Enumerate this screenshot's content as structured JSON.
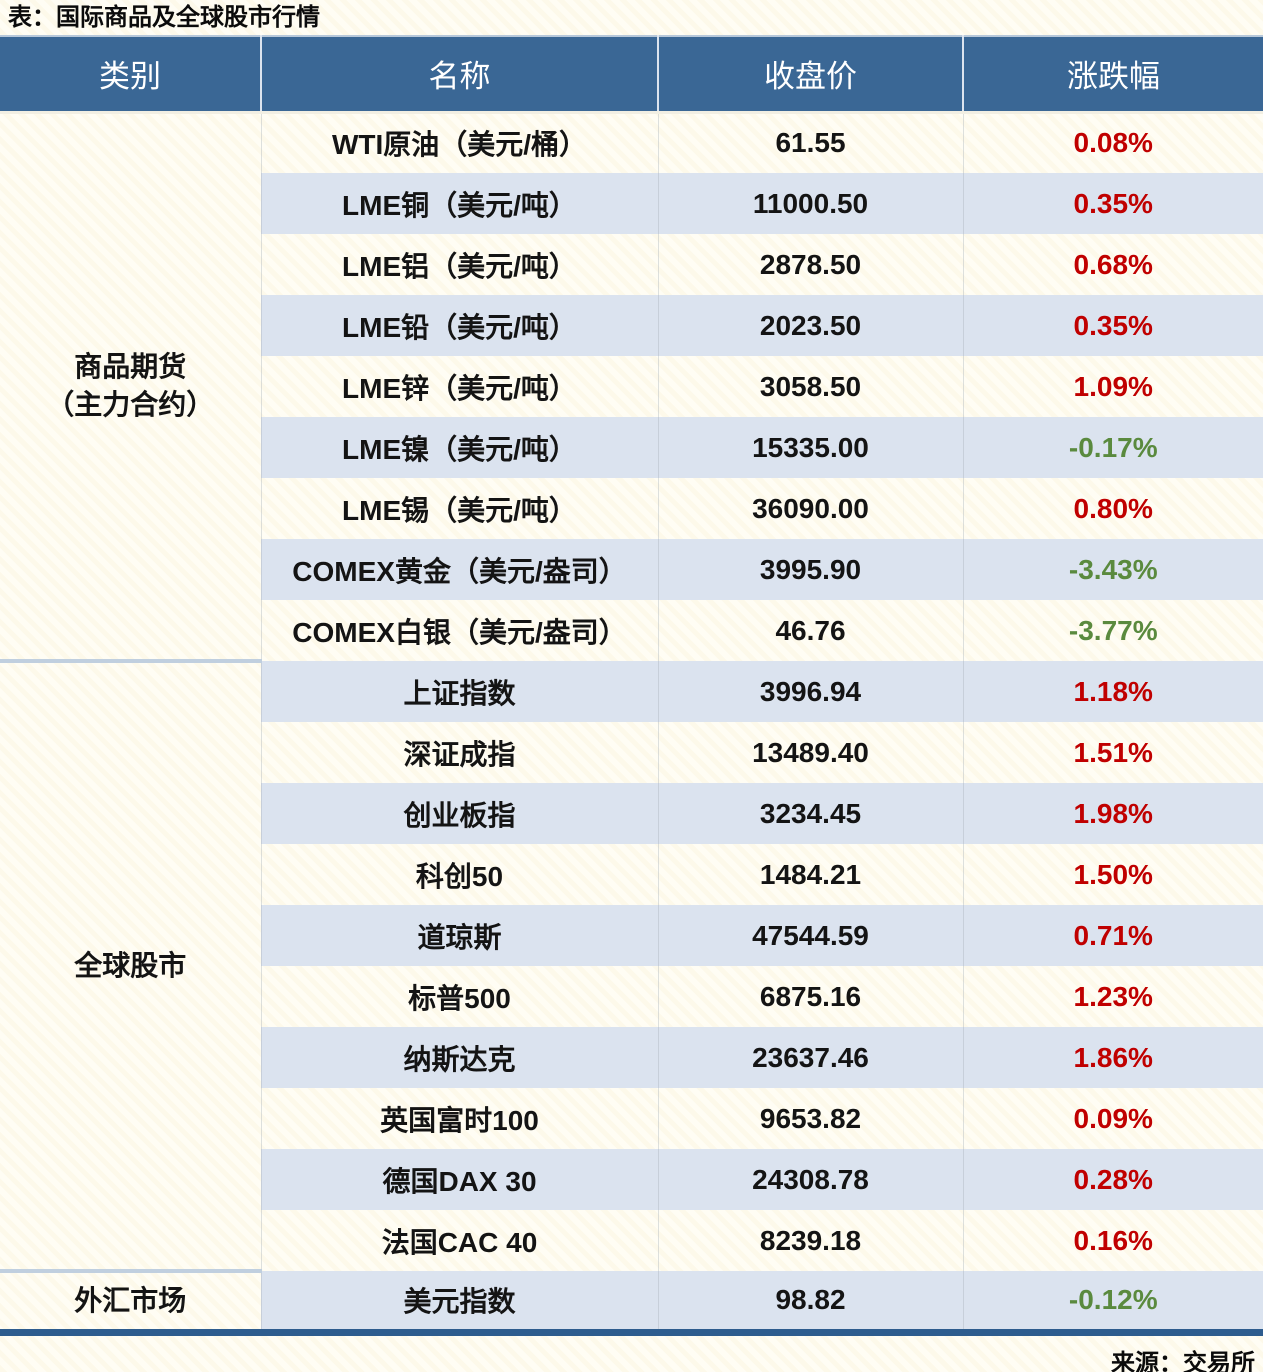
{
  "title": "表：国际商品及全球股市行情",
  "source": "来源：交易所",
  "colors": {
    "header_bg": "#3A6795",
    "alt_row_bg": "#DBE3EF",
    "page_bg": "#FFFDF4",
    "up_red": "#C00000",
    "down_green": "#5A8A3E",
    "bottom_border": "#2D5C8E"
  },
  "table": {
    "headers": [
      "类别",
      "名称",
      "收盘价",
      "涨跌幅"
    ],
    "groups": [
      {
        "category_lines": [
          "商品期货",
          "（主力合约）"
        ],
        "rows": [
          {
            "name": "WTI原油（美元/桶）",
            "close": "61.55",
            "change": "0.08%"
          },
          {
            "name": "LME铜（美元/吨）",
            "close": "11000.50",
            "change": "0.35%"
          },
          {
            "name": "LME铝（美元/吨）",
            "close": "2878.50",
            "change": "0.68%"
          },
          {
            "name": "LME铅（美元/吨）",
            "close": "2023.50",
            "change": "0.35%"
          },
          {
            "name": "LME锌（美元/吨）",
            "close": "3058.50",
            "change": "1.09%"
          },
          {
            "name": "LME镍（美元/吨）",
            "close": "15335.00",
            "change": "-0.17%"
          },
          {
            "name": "LME锡（美元/吨）",
            "close": "36090.00",
            "change": "0.80%"
          },
          {
            "name": "COMEX黄金（美元/盎司）",
            "close": "3995.90",
            "change": "-3.43%"
          },
          {
            "name": "COMEX白银（美元/盎司）",
            "close": "46.76",
            "change": "-3.77%"
          }
        ]
      },
      {
        "category_lines": [
          "全球股市"
        ],
        "rows": [
          {
            "name": "上证指数",
            "close": "3996.94",
            "change": "1.18%"
          },
          {
            "name": "深证成指",
            "close": "13489.40",
            "change": "1.51%"
          },
          {
            "name": "创业板指",
            "close": "3234.45",
            "change": "1.98%"
          },
          {
            "name": "科创50",
            "close": "1484.21",
            "change": "1.50%"
          },
          {
            "name": "道琼斯",
            "close": "47544.59",
            "change": "0.71%"
          },
          {
            "name": "标普500",
            "close": "6875.16",
            "change": "1.23%"
          },
          {
            "name": "纳斯达克",
            "close": "23637.46",
            "change": "1.86%"
          },
          {
            "name": "英国富时100",
            "close": "9653.82",
            "change": "0.09%"
          },
          {
            "name": "德国DAX 30",
            "close": "24308.78",
            "change": "0.28%"
          },
          {
            "name": "法国CAC 40",
            "close": "8239.18",
            "change": "0.16%"
          }
        ]
      },
      {
        "category_lines": [
          "外汇市场"
        ],
        "rows": [
          {
            "name": "美元指数",
            "close": "98.82",
            "change": "-0.12%"
          }
        ]
      }
    ]
  },
  "chart_data": {
    "type": "table",
    "title": "表：国际商品及全球股市行情",
    "columns": [
      "类别",
      "名称",
      "收盘价",
      "涨跌幅"
    ],
    "rows": [
      [
        "商品期货（主力合约）",
        "WTI原油（美元/桶）",
        61.55,
        "0.08%"
      ],
      [
        "商品期货（主力合约）",
        "LME铜（美元/吨）",
        11000.5,
        "0.35%"
      ],
      [
        "商品期货（主力合约）",
        "LME铝（美元/吨）",
        2878.5,
        "0.68%"
      ],
      [
        "商品期货（主力合约）",
        "LME铅（美元/吨）",
        2023.5,
        "0.35%"
      ],
      [
        "商品期货（主力合约）",
        "LME锌（美元/吨）",
        3058.5,
        "1.09%"
      ],
      [
        "商品期货（主力合约）",
        "LME镍（美元/吨）",
        15335.0,
        "-0.17%"
      ],
      [
        "商品期货（主力合约）",
        "LME锡（美元/吨）",
        36090.0,
        "0.80%"
      ],
      [
        "商品期货（主力合约）",
        "COMEX黄金（美元/盎司）",
        3995.9,
        "-3.43%"
      ],
      [
        "商品期货（主力合约）",
        "COMEX白银（美元/盎司）",
        46.76,
        "-3.77%"
      ],
      [
        "全球股市",
        "上证指数",
        3996.94,
        "1.18%"
      ],
      [
        "全球股市",
        "深证成指",
        13489.4,
        "1.51%"
      ],
      [
        "全球股市",
        "创业板指",
        3234.45,
        "1.98%"
      ],
      [
        "全球股市",
        "科创50",
        1484.21,
        "1.50%"
      ],
      [
        "全球股市",
        "道琼斯",
        47544.59,
        "0.71%"
      ],
      [
        "全球股市",
        "标普500",
        6875.16,
        "1.23%"
      ],
      [
        "全球股市",
        "纳斯达克",
        23637.46,
        "1.86%"
      ],
      [
        "全球股市",
        "英国富时100",
        9653.82,
        "0.09%"
      ],
      [
        "全球股市",
        "德国DAX 30",
        24308.78,
        "0.28%"
      ],
      [
        "全球股市",
        "法国CAC 40",
        8239.18,
        "0.16%"
      ],
      [
        "外汇市场",
        "美元指数",
        98.82,
        "-0.12%"
      ]
    ]
  }
}
